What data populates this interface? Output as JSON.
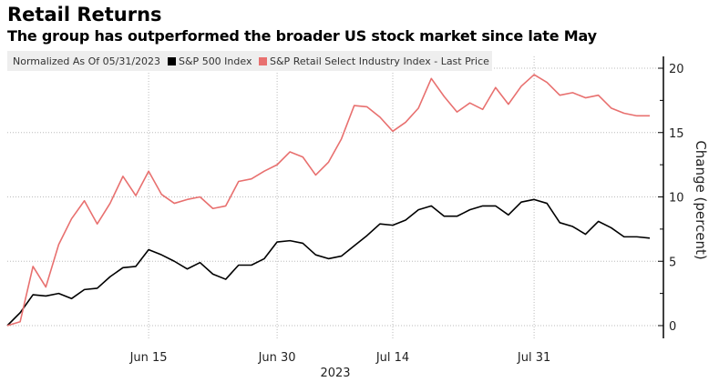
{
  "title": "Retail Returns",
  "subtitle": "The group has outperformed the broader US stock market since late May",
  "chart_data": {
    "type": "line",
    "legend_note": "Normalized As Of 05/31/2023",
    "legend_placement": "top-left",
    "ylabel": "Change (percent)",
    "xlabel": "2023",
    "ylim": [
      -1,
      21
    ],
    "yticks": [
      0,
      5,
      10,
      15,
      20
    ],
    "xticks": [
      {
        "label": "Jun 15",
        "date": "2023-06-15"
      },
      {
        "label": "Jun 30",
        "date": "2023-06-30"
      },
      {
        "label": "Jul 14",
        "date": "2023-07-14"
      },
      {
        "label": "Jul 31",
        "date": "2023-07-31"
      }
    ],
    "grid": true,
    "x": [
      "2023-05-31",
      "2023-06-01",
      "2023-06-02",
      "2023-06-05",
      "2023-06-06",
      "2023-06-07",
      "2023-06-08",
      "2023-06-09",
      "2023-06-12",
      "2023-06-13",
      "2023-06-14",
      "2023-06-15",
      "2023-06-16",
      "2023-06-20",
      "2023-06-21",
      "2023-06-22",
      "2023-06-23",
      "2023-06-26",
      "2023-06-27",
      "2023-06-28",
      "2023-06-29",
      "2023-06-30",
      "2023-07-03",
      "2023-07-05",
      "2023-07-06",
      "2023-07-07",
      "2023-07-10",
      "2023-07-11",
      "2023-07-12",
      "2023-07-13",
      "2023-07-14",
      "2023-07-17",
      "2023-07-18",
      "2023-07-19",
      "2023-07-20",
      "2023-07-21",
      "2023-07-24",
      "2023-07-25",
      "2023-07-26",
      "2023-07-27",
      "2023-07-28",
      "2023-07-31",
      "2023-08-01",
      "2023-08-02",
      "2023-08-03",
      "2023-08-04",
      "2023-08-07",
      "2023-08-08",
      "2023-08-09",
      "2023-08-10",
      "2023-08-11"
    ],
    "series": [
      {
        "name": "S&P 500 Index",
        "color": "#000000",
        "values": [
          0,
          1.0,
          2.4,
          2.3,
          2.5,
          2.1,
          2.8,
          2.9,
          3.8,
          4.5,
          4.6,
          5.9,
          5.5,
          5.0,
          4.4,
          4.9,
          4.0,
          3.6,
          4.7,
          4.7,
          5.2,
          6.5,
          6.6,
          6.4,
          5.5,
          5.2,
          5.4,
          6.2,
          7.0,
          7.9,
          7.8,
          8.2,
          9.0,
          9.3,
          8.5,
          8.5,
          9.0,
          9.3,
          9.3,
          8.6,
          9.6,
          9.8,
          9.5,
          8.0,
          7.7,
          7.1,
          8.1,
          7.6,
          6.9,
          6.9,
          6.8
        ]
      },
      {
        "name": "S&P Retail Select Industry Index - Last Price",
        "color": "#e8706f",
        "values": [
          0,
          0.3,
          4.6,
          3.0,
          6.3,
          8.3,
          9.7,
          7.9,
          9.5,
          11.6,
          10.1,
          12.0,
          10.2,
          9.5,
          9.8,
          10.0,
          9.1,
          9.3,
          11.2,
          11.4,
          12.0,
          12.5,
          13.5,
          13.1,
          11.7,
          12.7,
          14.5,
          17.1,
          17.0,
          16.2,
          15.1,
          15.8,
          16.9,
          19.2,
          17.8,
          16.6,
          17.3,
          16.8,
          18.5,
          17.2,
          18.6,
          19.5,
          18.9,
          17.9,
          18.1,
          17.7,
          17.9,
          16.9,
          16.5,
          16.3,
          16.3
        ]
      }
    ]
  }
}
